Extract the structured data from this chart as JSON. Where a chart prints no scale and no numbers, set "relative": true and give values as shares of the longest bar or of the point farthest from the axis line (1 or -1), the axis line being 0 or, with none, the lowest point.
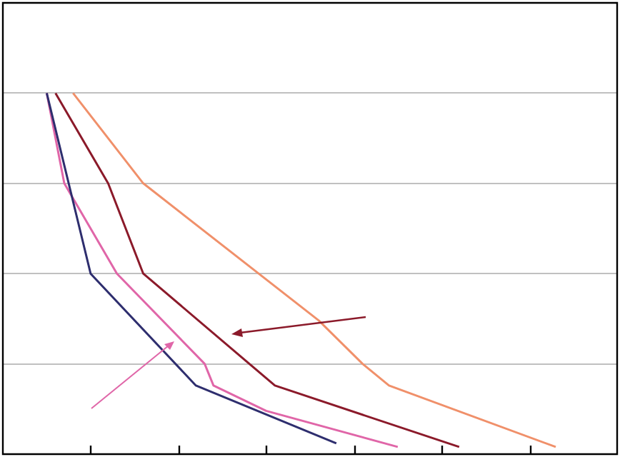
{
  "chart_data": {
    "type": "line",
    "relative": true,
    "categories": [
      null,
      null,
      null,
      null,
      null,
      null,
      null,
      null,
      null,
      null,
      null,
      null,
      null,
      null,
      null,
      null,
      null,
      null,
      null,
      null,
      null,
      null,
      null,
      null,
      null,
      null,
      null,
      null,
      null,
      null,
      null,
      null,
      null,
      null,
      null,
      null,
      null,
      null,
      null,
      null,
      null,
      null,
      null,
      null,
      null,
      null,
      null,
      null,
      null,
      null,
      null,
      null,
      null,
      null,
      null,
      null,
      null,
      null,
      null,
      null,
      null,
      null,
      null,
      null,
      null,
      null,
      null,
      null,
      null,
      null,
      null
    ],
    "grid": "y",
    "legend": false,
    "marker": "none",
    "line_style": "solid",
    "series": [
      {
        "color": "#2e2e6e",
        "values": [
          null,
          null,
          null,
          null,
          null,
          1,
          null,
          null,
          null,
          null,
          0.5,
          null,
          null,
          null,
          null,
          null,
          null,
          null,
          null,
          null,
          null,
          null,
          0.19,
          null,
          null,
          null,
          null,
          null,
          null,
          null,
          null,
          null,
          null,
          null,
          null,
          null,
          null,
          null,
          0.03,
          null,
          null,
          null,
          null,
          null,
          null,
          null,
          null,
          null,
          null,
          null,
          null,
          null,
          null,
          null,
          null,
          null,
          null,
          null,
          null,
          null,
          null,
          null,
          null,
          null,
          null,
          null,
          null,
          null,
          null,
          null,
          null
        ]
      },
      {
        "color": "#e066a8",
        "values": [
          null,
          null,
          null,
          null,
          null,
          1,
          null,
          0.75,
          null,
          null,
          null,
          null,
          null,
          0.5,
          null,
          null,
          null,
          null,
          null,
          null,
          null,
          null,
          null,
          0.25,
          0.19,
          null,
          null,
          null,
          null,
          null,
          0.12,
          null,
          null,
          null,
          null,
          null,
          null,
          null,
          null,
          null,
          null,
          null,
          null,
          null,
          null,
          0.02,
          null,
          null,
          null,
          null,
          null,
          null,
          null,
          null,
          null,
          null,
          null,
          null,
          null,
          null,
          null,
          null,
          null,
          null,
          null,
          null,
          null,
          null,
          null,
          null,
          null
        ]
      },
      {
        "color": "#8b1a2a",
        "values": [
          null,
          null,
          null,
          null,
          null,
          null,
          1,
          null,
          null,
          null,
          null,
          null,
          0.75,
          null,
          null,
          null,
          0.5,
          null,
          null,
          null,
          null,
          null,
          null,
          null,
          null,
          null,
          null,
          null,
          null,
          null,
          null,
          0.19,
          null,
          null,
          null,
          null,
          null,
          null,
          null,
          null,
          null,
          null,
          null,
          null,
          null,
          null,
          null,
          null,
          null,
          null,
          null,
          null,
          0.02,
          null,
          null,
          null,
          null,
          null,
          null,
          null,
          null,
          null,
          null,
          null,
          null,
          null,
          null,
          null,
          null,
          null,
          null
        ]
      },
      {
        "color": "#f0906a",
        "values": [
          null,
          null,
          null,
          null,
          null,
          null,
          null,
          null,
          1,
          null,
          null,
          null,
          null,
          null,
          null,
          null,
          0.75,
          null,
          null,
          null,
          null,
          null,
          null,
          null,
          null,
          null,
          null,
          null,
          null,
          null,
          null,
          null,
          null,
          null,
          null,
          null,
          0.37,
          null,
          null,
          null,
          null,
          0.25,
          null,
          null,
          0.19,
          null,
          null,
          null,
          null,
          null,
          null,
          null,
          null,
          null,
          null,
          null,
          null,
          null,
          null,
          null,
          null,
          null,
          null,
          0.02,
          null,
          null,
          null,
          null,
          null,
          null,
          null
        ]
      }
    ]
  }
}
